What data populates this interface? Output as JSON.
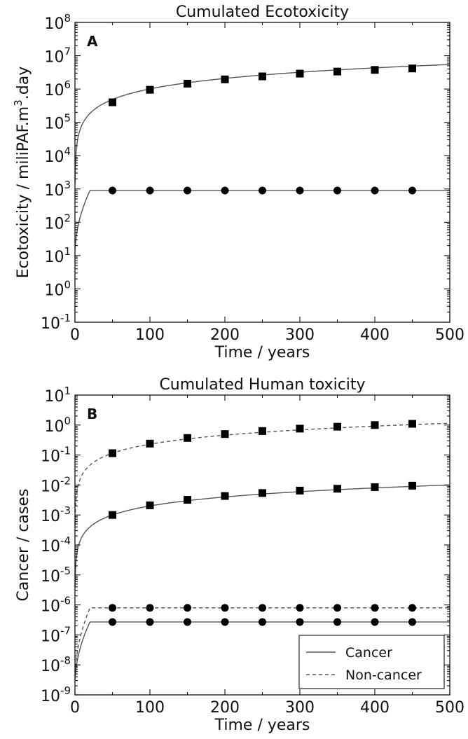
{
  "chart_data": [
    {
      "type": "line",
      "panel": "A",
      "title": "Cumulated Ecotoxicity",
      "xlabel": "Time / years",
      "ylabel_parts": [
        "Ecotoxicity / miliPAF.m",
        "3",
        ".day"
      ],
      "xlim": [
        0,
        500
      ],
      "ylim": [
        0.1,
        100000000
      ],
      "yscale": "log",
      "x_ticks": [
        "0",
        "100",
        "200",
        "300",
        "400",
        "500"
      ],
      "y_ticks": [
        {
          "base": "10",
          "exp": "-1"
        },
        {
          "base": "10",
          "exp": "0"
        },
        {
          "base": "10",
          "exp": "1"
        },
        {
          "base": "10",
          "exp": "2"
        },
        {
          "base": "10",
          "exp": "3"
        },
        {
          "base": "10",
          "exp": "4"
        },
        {
          "base": "10",
          "exp": "5"
        },
        {
          "base": "10",
          "exp": "6"
        },
        {
          "base": "10",
          "exp": "7"
        },
        {
          "base": "10",
          "exp": "8"
        }
      ],
      "series": [
        {
          "style": "solid",
          "marker": "square",
          "curve": {
            "kind": "power",
            "x_end": 500,
            "a": 8000,
            "b": 1.05
          },
          "marker_x": [
            50,
            100,
            150,
            200,
            250,
            300,
            350,
            400,
            450
          ],
          "marker_y": [
            400000,
            950000,
            1450000,
            1950000,
            2400000,
            2900000,
            3350000,
            3750000,
            4150000
          ]
        },
        {
          "style": "solid",
          "marker": "circle",
          "curve": {
            "kind": "plateau",
            "x_end": 500,
            "y0": 10,
            "y_plateau": 900,
            "x_plateau": 20
          },
          "marker_x": [
            50,
            100,
            150,
            200,
            250,
            300,
            350,
            400,
            450
          ],
          "marker_y": [
            900,
            900,
            900,
            900,
            900,
            900,
            900,
            900,
            900
          ]
        }
      ],
      "grid": false
    },
    {
      "type": "line",
      "panel": "B",
      "title": "Cumulated Human toxicity",
      "xlabel": "Time / years",
      "ylabel_parts": [
        "Cancer / cases",
        "",
        ""
      ],
      "xlim": [
        0,
        500
      ],
      "ylim": [
        1e-09,
        10
      ],
      "yscale": "log",
      "x_ticks": [
        "0",
        "100",
        "200",
        "300",
        "400",
        "500"
      ],
      "y_ticks": [
        {
          "base": "10",
          "exp": "-9"
        },
        {
          "base": "10",
          "exp": "-8"
        },
        {
          "base": "10",
          "exp": "-7"
        },
        {
          "base": "10",
          "exp": "-6"
        },
        {
          "base": "10",
          "exp": "-5"
        },
        {
          "base": "10",
          "exp": "-4"
        },
        {
          "base": "10",
          "exp": "-3"
        },
        {
          "base": "10",
          "exp": "-2"
        },
        {
          "base": "10",
          "exp": "-1"
        },
        {
          "base": "10",
          "exp": "0"
        },
        {
          "base": "10",
          "exp": "1"
        }
      ],
      "series": [
        {
          "name": "Non-cancer",
          "style": "dashed",
          "marker": "square",
          "curve": {
            "kind": "power",
            "x_end": 500,
            "a": 0.0023,
            "b": 1.0
          },
          "marker_x": [
            50,
            100,
            150,
            200,
            250,
            300,
            350,
            400,
            450
          ],
          "marker_y": [
            0.115,
            0.24,
            0.37,
            0.5,
            0.63,
            0.76,
            0.88,
            1.0,
            1.1
          ]
        },
        {
          "name": "Cancer",
          "style": "solid",
          "marker": "square",
          "curve": {
            "kind": "power",
            "x_end": 500,
            "a": 2e-05,
            "b": 1.0
          },
          "marker_x": [
            50,
            100,
            150,
            200,
            250,
            300,
            350,
            400,
            450
          ],
          "marker_y": [
            0.001,
            0.0021,
            0.0032,
            0.0043,
            0.0054,
            0.0065,
            0.0075,
            0.0085,
            0.0095
          ]
        },
        {
          "style": "dashed",
          "marker": "circle",
          "curve": {
            "kind": "plateau",
            "x_end": 500,
            "y0": 3e-09,
            "y_plateau": 8e-07,
            "x_plateau": 20
          },
          "marker_x": [
            50,
            100,
            150,
            200,
            250,
            300,
            350,
            400,
            450
          ],
          "marker_y": [
            8e-07,
            8e-07,
            8e-07,
            8e-07,
            8e-07,
            8e-07,
            8e-07,
            8e-07,
            8e-07
          ]
        },
        {
          "style": "solid",
          "marker": "circle",
          "curve": {
            "kind": "plateau",
            "x_end": 500,
            "y0": 2e-09,
            "y_plateau": 2.7e-07,
            "x_plateau": 20
          },
          "marker_x": [
            50,
            100,
            150,
            200,
            250,
            300,
            350,
            400,
            450
          ],
          "marker_y": [
            2.7e-07,
            2.7e-07,
            2.7e-07,
            2.7e-07,
            2.7e-07,
            2.7e-07,
            2.7e-07,
            2.7e-07,
            2.7e-07
          ]
        }
      ],
      "legend": {
        "placement": "lower-right",
        "entries": [
          {
            "label": "Cancer",
            "style": "solid"
          },
          {
            "label": "Non-cancer",
            "style": "dashed"
          }
        ]
      },
      "grid": false
    }
  ]
}
